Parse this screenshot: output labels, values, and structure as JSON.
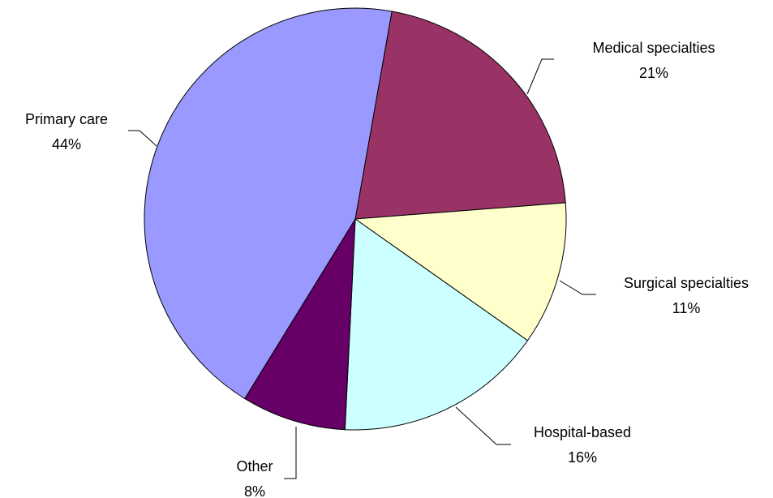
{
  "chart_data": {
    "type": "pie",
    "categories": [
      "Medical specialties",
      "Surgical specialties",
      "Hospital-based",
      "Other",
      "Primary care"
    ],
    "values": [
      21,
      11,
      16,
      8,
      44
    ],
    "value_labels": [
      "21%",
      "11%",
      "16%",
      "8%",
      "44%"
    ],
    "colors": [
      "#993366",
      "#ffffcc",
      "#ccffff",
      "#660066",
      "#9999ff"
    ]
  }
}
